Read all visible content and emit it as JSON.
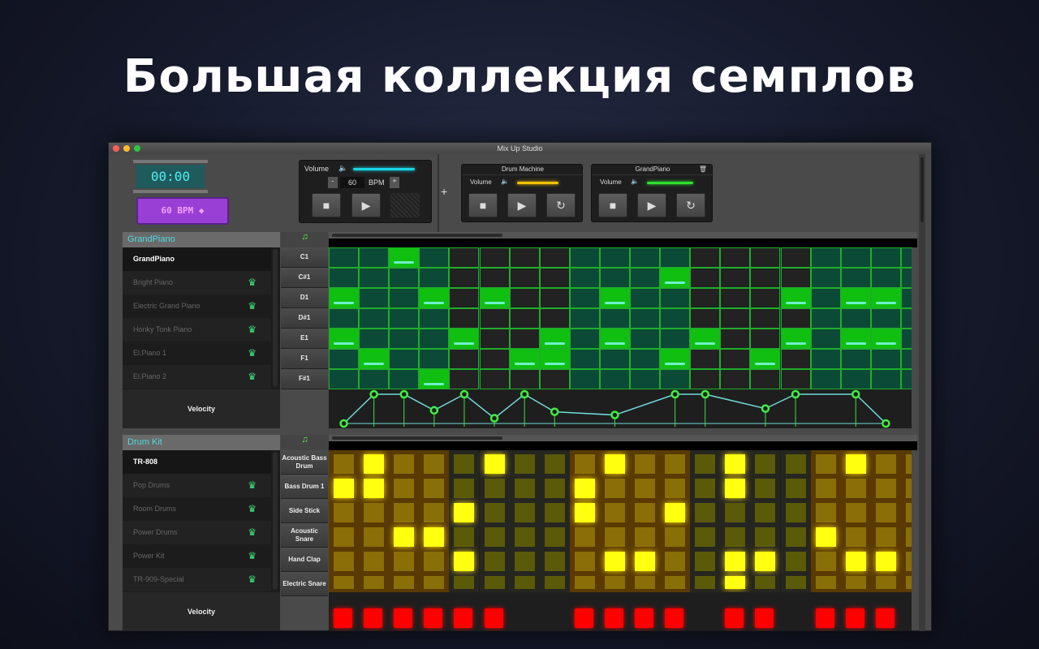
{
  "headline": "Большая коллекция семплов",
  "window": {
    "title": "Mix Up Studio"
  },
  "timer": {
    "time": "00:00",
    "bpm_display": "60 BPM"
  },
  "master": {
    "volume_label": "Volume",
    "volume": 0.95,
    "bpm_value": "60",
    "bpm_label": "BPM",
    "minus": "-",
    "plus": "+",
    "accent": "#19d4e6"
  },
  "add_track": "+",
  "tracks": [
    {
      "name": "Drum Machine",
      "volume_label": "Volume",
      "volume": 0.85,
      "color": "#f2c200"
    },
    {
      "name": "GrandPiano",
      "volume_label": "Volume",
      "volume": 0.95,
      "color": "#2fe02f",
      "icon": "trash-icon"
    }
  ],
  "piano": {
    "header": "GrandPiano",
    "instruments": [
      {
        "name": "GrandPiano",
        "selected": true
      },
      {
        "name": "Bright Piano"
      },
      {
        "name": "Electric Grand Piano"
      },
      {
        "name": "Honky Tonk Piano"
      },
      {
        "name": "El.Piano 1"
      },
      {
        "name": "El.Piano 2"
      }
    ],
    "notes": [
      "C1",
      "C#1",
      "D1",
      "D#1",
      "E1",
      "F1",
      "F#1"
    ],
    "active": [
      [
        2
      ],
      [
        11
      ],
      [
        0,
        3,
        5,
        9,
        15,
        17,
        18
      ],
      [],
      [
        0,
        4,
        7,
        9,
        12,
        15,
        17,
        18
      ],
      [
        1,
        6,
        7,
        11,
        14
      ],
      [
        3
      ]
    ],
    "velocity_label": "Velocity",
    "velocity": [
      [
        0,
        0
      ],
      [
        1,
        1
      ],
      [
        2,
        1
      ],
      [
        3,
        0.45
      ],
      [
        4,
        1
      ],
      [
        5,
        0.18
      ],
      [
        6,
        1
      ],
      [
        7,
        0.4
      ],
      [
        9,
        0.29
      ],
      [
        11,
        1
      ],
      [
        12,
        1
      ],
      [
        14,
        0.51
      ],
      [
        15,
        1
      ],
      [
        17,
        1
      ],
      [
        18,
        0
      ]
    ]
  },
  "drums": {
    "header": "Drum Kit",
    "instruments": [
      {
        "name": "TR-808",
        "selected": true
      },
      {
        "name": "Pop Drums"
      },
      {
        "name": "Room Drums"
      },
      {
        "name": "Power Drums"
      },
      {
        "name": "Power Kit"
      },
      {
        "name": "TR-909-Special"
      }
    ],
    "sounds": [
      "Acoustic Bass Drum",
      "Bass Drum 1",
      "Side Stick",
      "Acoustic Snare",
      "Hand Clap",
      "Electric Snare"
    ],
    "active": [
      [
        1,
        5,
        9,
        13,
        17
      ],
      [
        0,
        1,
        8,
        13
      ],
      [
        4,
        8,
        11
      ],
      [
        2,
        3,
        16
      ],
      [
        4,
        9,
        10,
        13,
        14,
        17,
        18
      ],
      [
        13
      ]
    ],
    "velocity_label": "Velocity",
    "velocity_steps": [
      0,
      1,
      2,
      3,
      4,
      5,
      8,
      9,
      10,
      11,
      13,
      14,
      16,
      17,
      18
    ]
  }
}
